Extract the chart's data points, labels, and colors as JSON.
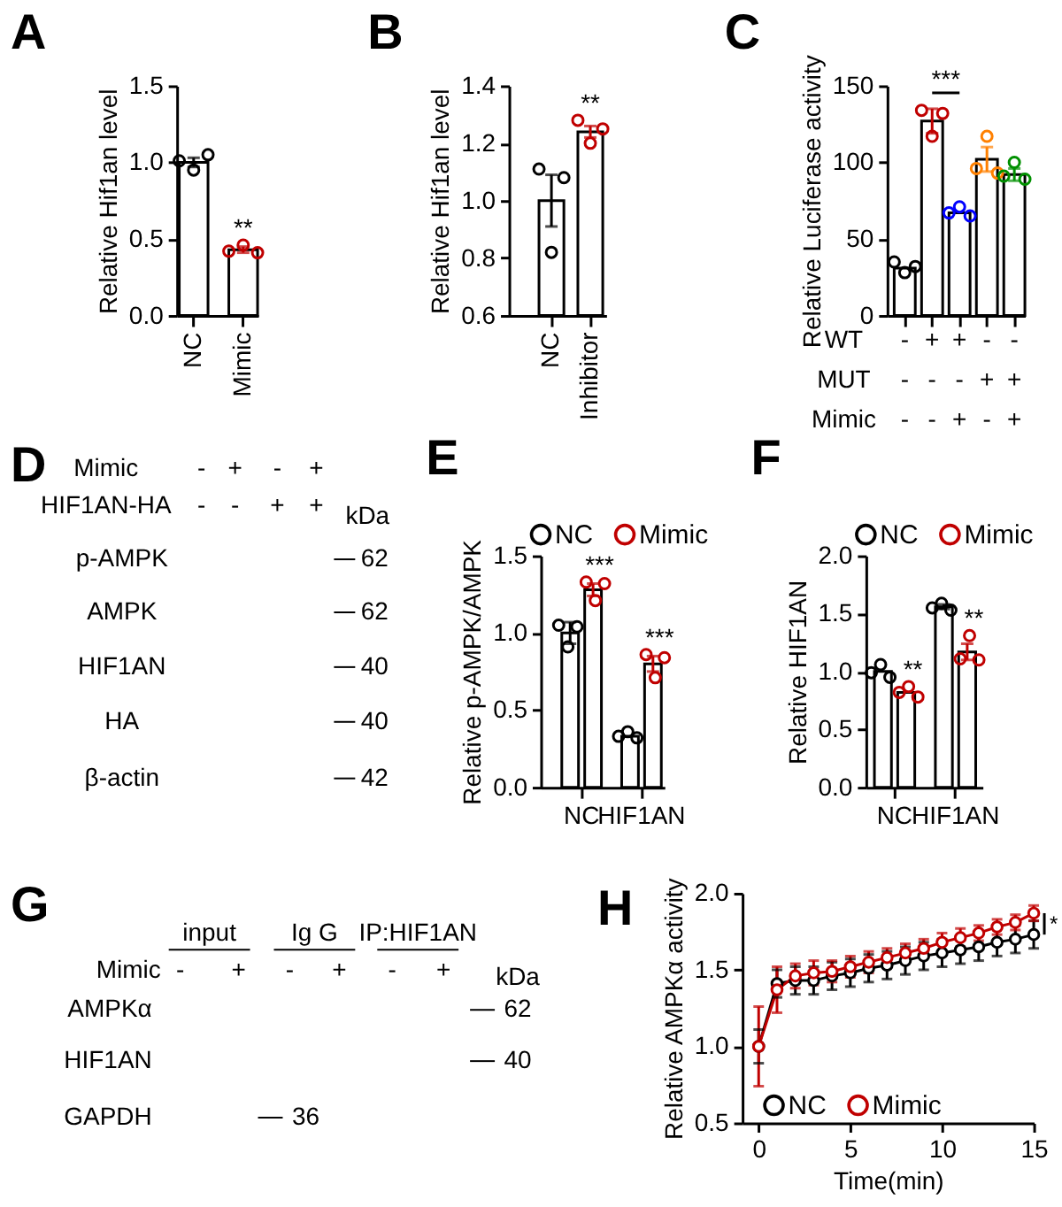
{
  "chart_data": [
    {
      "type": "bar",
      "title": "A",
      "ylabel": "Relative Hif1an level",
      "categories": [
        "NC",
        "Mimic"
      ],
      "ylim": [
        0,
        1.5
      ],
      "yticks": [
        {
          "value": 0,
          "label": "0.0"
        },
        0.5,
        {
          "value": 1,
          "label": "1.0"
        },
        1.5
      ],
      "marker": "circle",
      "series": [
        {
          "type": "bar",
          "color": "#ffffff",
          "values": [
            1.0,
            0.43
          ],
          "errors": [
            0.03,
            0.02
          ]
        },
        {
          "type": "scatter",
          "x": [
            "NC",
            "NC",
            "NC",
            "Mimic",
            "Mimic",
            "Mimic"
          ],
          "values": [
            1.01,
            0.95,
            1.05,
            0.42,
            0.46,
            0.41
          ],
          "colors": [
            "#000000",
            "#000000",
            "#000000",
            "#c00000",
            "#c00000",
            "#c00000"
          ]
        }
      ],
      "annotations": [
        "**"
      ]
    },
    {
      "type": "bar",
      "title": "B",
      "ylabel": "Relative Hif1an level",
      "categories": [
        "NC",
        "Inhibitor"
      ],
      "ylim": [
        0.6,
        1.4
      ],
      "yticks": [
        0.6,
        0.8,
        {
          "value": 1,
          "label": "1.0"
        },
        1.2,
        1.4
      ],
      "marker": "circle",
      "series": [
        {
          "type": "bar",
          "color": "#ffffff",
          "values": [
            1.0,
            1.24
          ],
          "errors": [
            0.09,
            0.02
          ]
        },
        {
          "type": "scatter",
          "x": [
            "NC",
            "NC",
            "NC",
            "Inhibitor",
            "Inhibitor",
            "Inhibitor"
          ],
          "values": [
            1.11,
            0.82,
            1.08,
            1.28,
            1.2,
            1.25
          ],
          "colors": [
            "#000000",
            "#000000",
            "#000000",
            "#c00000",
            "#c00000",
            "#c00000"
          ]
        }
      ],
      "annotations": [
        "**"
      ]
    },
    {
      "type": "bar",
      "title": "C",
      "ylabel": "Relative Luciferase activity",
      "xlabel": "WT\nMUT\nMimic",
      "categories": [
        "-\n-\n-",
        "+\n-\n-",
        "+\n-\n+",
        "-\n+\n-",
        "-\n+\n+"
      ],
      "ylim": [
        0,
        150
      ],
      "yticks": [
        0,
        50,
        100,
        150
      ],
      "marker": "circle",
      "series": [
        {
          "type": "bar",
          "color": "#ffffff",
          "values": [
            31,
            127,
            67,
            102,
            92
          ],
          "errors": [
            null,
            8,
            null,
            8,
            4
          ]
        },
        {
          "type": "scatter",
          "x": [
            "-\n-\n-",
            "-\n-\n-",
            "-\n-\n-",
            "+\n-\n-",
            "+\n-\n-",
            "+\n-\n-",
            "+\n-\n+",
            "+\n-\n+",
            "+\n-\n+",
            "-\n+\n-",
            "-\n+\n-",
            "-\n+\n-",
            "-\n+\n+",
            "-\n+\n+",
            "-\n+\n+"
          ],
          "values": [
            35,
            28,
            32,
            134,
            117,
            132,
            67,
            71,
            65,
            96,
            117,
            93,
            91,
            100,
            89
          ],
          "colors": [
            "#000000",
            "#000000",
            "#000000",
            "#c00000",
            "#c00000",
            "#c00000",
            "#0000ff",
            "#0000ff",
            "#0000ff",
            "#ff8000",
            "#ff8000",
            "#ff8000",
            "#009000",
            "#009000",
            "#009000"
          ]
        }
      ],
      "annotations": [
        "***"
      ]
    },
    {
      "type": "other",
      "title": "D",
      "xlabel": "Mimic\nHIF1AN-HA",
      "categories": [
        "-\n-",
        "+\n-",
        "-\n+",
        "+\n+"
      ],
      "y_categories": [
        "p-AMPK",
        "AMPK",
        "HIF1AN",
        "HA",
        "β-actin"
      ],
      "y2_categories": [
        "62",
        "62",
        "40",
        "40",
        "42"
      ],
      "annotations": [
        "kDa"
      ]
    },
    {
      "type": "bar",
      "title": "E",
      "ylabel": "Relative p-AMPK/AMPK",
      "categories": [
        "NC",
        "HIF1AN"
      ],
      "ylim": [
        0,
        1.5
      ],
      "yticks": [
        {
          "value": 0,
          "label": "0.0"
        },
        0.5,
        {
          "value": 1,
          "label": "1.0"
        },
        1.5
      ],
      "marker": "circle",
      "legend": "top",
      "series": [
        {
          "type": "bar",
          "color": "#ffffff",
          "values": [
            1.0,
            0.33
          ],
          "errors": [
            0.07,
            null
          ]
        },
        {
          "type": "bar",
          "color": "#ffffff",
          "values": [
            1.28,
            0.8
          ],
          "errors": [
            0.04,
            0.05
          ]
        },
        {
          "name": "NC",
          "type": "scatter",
          "color": "#000000",
          "x": [
            "NC",
            "NC",
            "NC",
            "HIF1AN",
            "HIF1AN",
            "HIF1AN"
          ],
          "values": [
            1.05,
            0.91,
            1.04,
            0.33,
            0.36,
            0.32
          ]
        },
        {
          "name": "Mimic",
          "type": "scatter",
          "color": "#c00000",
          "x": [
            "NC",
            "NC",
            "NC",
            "HIF1AN",
            "HIF1AN",
            "HIF1AN"
          ],
          "values": [
            1.33,
            1.21,
            1.32,
            0.86,
            0.71,
            0.84
          ]
        }
      ],
      "annotations": [
        "***",
        "***"
      ]
    },
    {
      "type": "bar",
      "title": "F",
      "ylabel": "Relative HIF1AN",
      "categories": [
        "NC",
        "HIF1AN"
      ],
      "ylim": [
        0,
        2
      ],
      "yticks": [
        {
          "value": 0,
          "label": "0.0"
        },
        0.5,
        {
          "value": 1,
          "label": "1.0"
        },
        1.5,
        {
          "value": 2,
          "label": "2.0"
        }
      ],
      "marker": "circle",
      "legend": "top",
      "series": [
        {
          "type": "bar",
          "color": "#ffffff",
          "values": [
            1.0,
            1.56
          ],
          "errors": [
            null,
            0.02
          ]
        },
        {
          "type": "bar",
          "color": "#ffffff",
          "values": [
            0.82,
            1.17
          ],
          "errors": [
            null,
            0.07
          ]
        },
        {
          "name": "NC",
          "type": "scatter",
          "color": "#000000",
          "x": [
            "NC",
            "NC",
            "NC",
            "HIF1AN",
            "HIF1AN",
            "HIF1AN"
          ],
          "values": [
            0.99,
            1.06,
            0.95,
            1.55,
            1.59,
            1.53
          ]
        },
        {
          "name": "Mimic",
          "type": "scatter",
          "color": "#c00000",
          "x": [
            "NC",
            "NC",
            "NC",
            "HIF1AN",
            "HIF1AN",
            "HIF1AN"
          ],
          "values": [
            0.82,
            0.87,
            0.78,
            1.11,
            1.31,
            1.1
          ]
        }
      ],
      "annotations": [
        "**",
        "**"
      ]
    },
    {
      "type": "other",
      "title": "G",
      "xlabel": "Mimic",
      "categories": [
        "-",
        "+",
        "-",
        "+",
        "-",
        "+"
      ],
      "y_categories": [
        "AMPKα",
        "HIF1AN",
        "GAPDH"
      ],
      "y2_categories": [
        "62",
        "40",
        "36"
      ],
      "annotations": [
        "input",
        "Ig G",
        "IP:HIF1AN",
        "kDa"
      ]
    },
    {
      "type": "line",
      "title": "H",
      "xlabel": "Time(min)",
      "ylabel": "Relative AMPKα activity",
      "x": [
        0,
        1,
        2,
        3,
        4,
        5,
        6,
        7,
        8,
        9,
        10,
        11,
        12,
        13,
        14,
        15
      ],
      "xlim": [
        -0.9,
        15
      ],
      "xticks": [
        0,
        5,
        10,
        15
      ],
      "ylim": [
        0.5,
        2
      ],
      "yticks": [
        0.5,
        {
          "value": 1,
          "label": "1.0"
        },
        1.5,
        {
          "value": 2,
          "label": "2.0"
        }
      ],
      "marker": "circle",
      "line_style": "solid",
      "legend": "bottom left",
      "series": [
        {
          "name": "NC",
          "color": "#000000",
          "values": [
            1.0,
            1.41,
            1.43,
            1.43,
            1.46,
            1.48,
            1.51,
            1.53,
            1.56,
            1.59,
            1.61,
            1.63,
            1.65,
            1.68,
            1.7,
            1.73
          ],
          "errors": [
            0.11,
            0.09,
            0.09,
            0.09,
            0.09,
            0.09,
            0.09,
            0.09,
            0.09,
            0.09,
            0.09,
            0.09,
            0.09,
            0.09,
            0.09,
            0.09
          ]
        },
        {
          "name": "Mimic",
          "color": "#c00000",
          "values": [
            1.0,
            1.37,
            1.46,
            1.48,
            1.49,
            1.52,
            1.55,
            1.58,
            1.61,
            1.64,
            1.68,
            1.71,
            1.74,
            1.78,
            1.81,
            1.87
          ],
          "errors": [
            0.26,
            0.15,
            0.08,
            0.08,
            0.07,
            0.07,
            0.07,
            0.06,
            0.06,
            0.06,
            0.06,
            0.06,
            0.05,
            0.05,
            0.05,
            0.05
          ]
        }
      ],
      "annotations": [
        "*"
      ]
    }
  ]
}
